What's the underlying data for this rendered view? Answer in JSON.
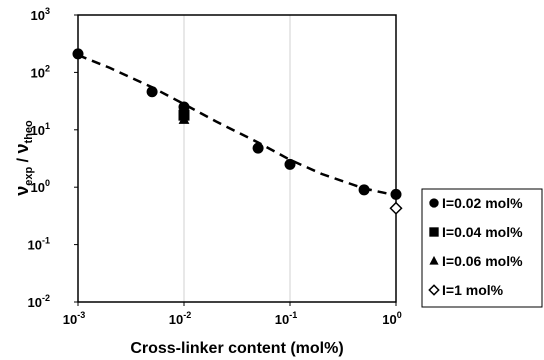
{
  "chart_data": {
    "type": "scatter",
    "xlabel": "Cross-linker content (mol%)",
    "ylabel_main": "ν",
    "ylabel_sub1": "exp",
    "ylabel_sep": " / ",
    "ylabel_sub2": "theo",
    "x_scale": "log",
    "y_scale": "log",
    "xlim": [
      0.001,
      1
    ],
    "ylim": [
      0.01,
      1000
    ],
    "grid": "vertical",
    "legend_position": "right",
    "x_ticks": [
      {
        "base": "10",
        "exp": "-3",
        "value": 0.001
      },
      {
        "base": "10",
        "exp": "-2",
        "value": 0.01
      },
      {
        "base": "10",
        "exp": "-1",
        "value": 0.1
      },
      {
        "base": "10",
        "exp": "0",
        "value": 1
      }
    ],
    "y_ticks": [
      {
        "base": "10",
        "exp": "-2",
        "value": 0.01
      },
      {
        "base": "10",
        "exp": "-1",
        "value": 0.1
      },
      {
        "base": "10",
        "exp": "0",
        "value": 1
      },
      {
        "base": "10",
        "exp": "1",
        "value": 10
      },
      {
        "base": "10",
        "exp": "2",
        "value": 100
      },
      {
        "base": "10",
        "exp": "3",
        "value": 1000
      }
    ],
    "series": [
      {
        "name": "I=0.02 mol%",
        "marker": "circle-filled",
        "points": [
          [
            0.001,
            210
          ],
          [
            0.005,
            46
          ],
          [
            0.01,
            25
          ],
          [
            0.05,
            4.8
          ],
          [
            0.1,
            2.5
          ],
          [
            0.5,
            0.9
          ],
          [
            1,
            0.75
          ]
        ]
      },
      {
        "name": "I=0.04 mol%",
        "marker": "square-filled",
        "points": [
          [
            0.01,
            18
          ]
        ]
      },
      {
        "name": "I=0.06 mol%",
        "marker": "triangle-filled",
        "points": [
          [
            0.01,
            15
          ]
        ]
      },
      {
        "name": "I=1 mol%",
        "marker": "diamond-open",
        "points": [
          [
            1,
            0.43
          ]
        ]
      }
    ],
    "trend_line": {
      "style": "dashed",
      "points": [
        [
          0.001,
          200
        ],
        [
          0.002,
          120
        ],
        [
          0.005,
          55
        ],
        [
          0.01,
          28
        ],
        [
          0.02,
          14
        ],
        [
          0.05,
          6
        ],
        [
          0.1,
          3
        ],
        [
          0.2,
          1.7
        ],
        [
          0.5,
          0.95
        ],
        [
          1,
          0.72
        ]
      ]
    }
  }
}
